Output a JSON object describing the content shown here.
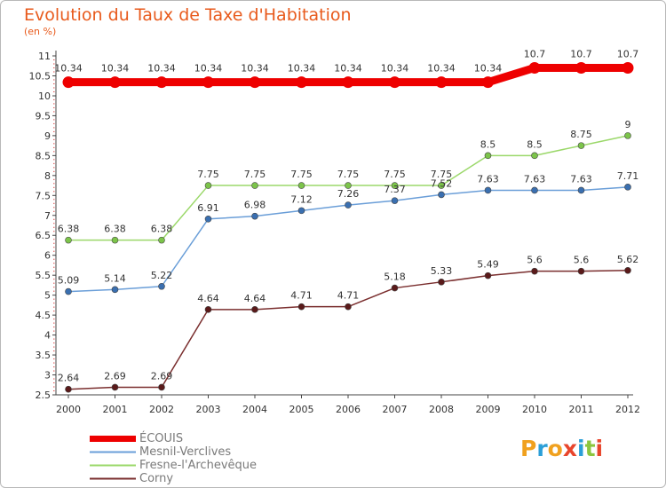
{
  "header": {
    "title": "Evolution du Taux de Taxe d'Habitation",
    "subtitle": "(en %)"
  },
  "brand": {
    "text": "Proxiti",
    "letters": [
      {
        "ch": "P",
        "color": "#f0a11f"
      },
      {
        "ch": "r",
        "color": "#2b9fd8"
      },
      {
        "ch": "o",
        "color": "#f0a11f"
      },
      {
        "ch": "x",
        "color": "#e8452c"
      },
      {
        "ch": "i",
        "color": "#2b9fd8"
      },
      {
        "ch": "t",
        "color": "#8cc63f"
      },
      {
        "ch": "i",
        "color": "#e8452c"
      }
    ]
  },
  "chart_data": {
    "type": "line",
    "title": "Evolution du Taux de Taxe d'Habitation",
    "subtitle": "(en %)",
    "xlabel": "",
    "ylabel": "",
    "x": [
      "2000",
      "2001",
      "2002",
      "2003",
      "2004",
      "2005",
      "2006",
      "2007",
      "2008",
      "2009",
      "2010",
      "2011",
      "2012"
    ],
    "ylim": [
      2.5,
      11
    ],
    "yticks": [
      "2.5",
      "3",
      "3.5",
      "4",
      "4.5",
      "5",
      "5.5",
      "6",
      "6.5",
      "7",
      "7.5",
      "8",
      "8.5",
      "9",
      "9.5",
      "10",
      "10.5",
      "11"
    ],
    "grid": false,
    "legend_position": "bottom-left",
    "series": [
      {
        "name": "ÉCOUIS",
        "color": "#ee0000",
        "values": [
          10.34,
          10.34,
          10.34,
          10.34,
          10.34,
          10.34,
          10.34,
          10.34,
          10.34,
          10.34,
          10.7,
          10.7,
          10.7
        ],
        "labels": [
          "10.34",
          "10.34",
          "10.34",
          "10.34",
          "10.34",
          "10.34",
          "10.34",
          "10.34",
          "10.34",
          "10.34",
          "10.7",
          "10.7",
          "10.7"
        ]
      },
      {
        "name": "Mesnil-Verclives",
        "color": "#6a9ed8",
        "values": [
          5.09,
          5.14,
          5.22,
          6.91,
          6.98,
          7.12,
          7.26,
          7.37,
          7.52,
          7.63,
          7.63,
          7.63,
          7.71
        ],
        "labels": [
          "5.09",
          "5.14",
          "5.22",
          "6.91",
          "6.98",
          "7.12",
          "7.26",
          "7.37",
          "7.52",
          "7.63",
          "7.63",
          "7.63",
          "7.71"
        ]
      },
      {
        "name": "Fresne-l'Archevêque",
        "color": "#9bd86a",
        "values": [
          6.38,
          6.38,
          6.38,
          7.75,
          7.75,
          7.75,
          7.75,
          7.75,
          7.75,
          8.5,
          8.5,
          8.75,
          9
        ],
        "labels": [
          "6.38",
          "6.38",
          "6.38",
          "7.75",
          "7.75",
          "7.75",
          "7.75",
          "7.75",
          "7.75",
          "8.5",
          "8.5",
          "8.75",
          "9"
        ]
      },
      {
        "name": "Corny",
        "color": "#7a2e2e",
        "values": [
          2.64,
          2.69,
          2.69,
          4.64,
          4.64,
          4.71,
          4.71,
          5.18,
          5.33,
          5.49,
          5.6,
          5.6,
          5.62
        ],
        "labels": [
          "2.64",
          "2.69",
          "2.69",
          "4.64",
          "4.64",
          "4.71",
          "4.71",
          "5.18",
          "5.33",
          "5.49",
          "5.6",
          "5.6",
          "5.62"
        ]
      }
    ]
  }
}
